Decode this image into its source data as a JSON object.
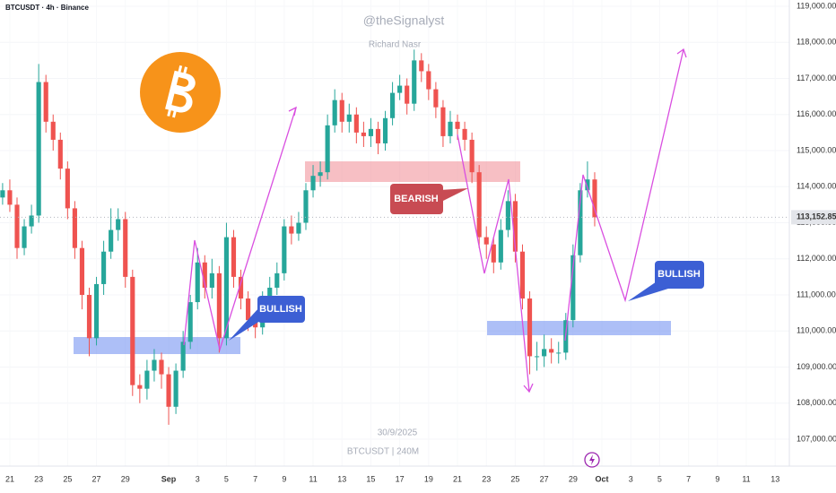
{
  "chart_data": {
    "type": "candlestick",
    "title": "BTCUSDT · 4h · Binance",
    "watermark": {
      "handle": "@theSignalyst",
      "author": "Richard Nasr",
      "date": "30/9/2025",
      "symbol": "BTCUSDT | 240M"
    },
    "annotations": [
      "BULLISH",
      "BEARISH",
      "BULLISH"
    ],
    "up_color": "#26a69a",
    "down_color": "#ef5350",
    "x": [
      -0.5,
      0,
      0.5,
      1,
      1.5,
      2,
      2.5,
      3,
      3.5,
      4,
      4.5,
      5,
      5.5,
      6,
      6.5,
      7,
      7.5,
      8,
      8.5,
      9,
      9.5,
      10,
      10.5,
      11,
      11.5,
      12,
      12.5,
      13,
      13.5,
      14,
      14.5,
      15,
      15.5,
      16,
      16.5,
      17,
      17.5,
      18,
      18.5,
      19,
      19.5,
      20,
      20.5,
      21,
      21.5,
      22,
      22.5,
      23,
      23.5,
      24,
      24.5,
      25,
      25.5,
      26,
      26.5,
      27,
      27.5,
      28,
      28.5,
      29,
      29.5,
      30,
      30.5,
      31,
      31.5,
      32,
      32.5,
      33,
      33.5,
      34,
      34.5,
      35,
      35.5,
      36,
      36.5,
      37,
      37.5,
      38,
      38.5,
      39,
      39.5,
      40,
      40.5
    ],
    "open": [
      113700,
      113900,
      113500,
      112300,
      112900,
      113200,
      116900,
      115800,
      115300,
      114500,
      113400,
      112300,
      111000,
      109800,
      111300,
      112200,
      112800,
      113100,
      111500,
      108500,
      108400,
      108900,
      109200,
      108800,
      107900,
      108900,
      109700,
      110800,
      111900,
      111200,
      111600,
      109800,
      112600,
      111500,
      110900,
      110300,
      110100,
      110900,
      111200,
      111600,
      112900,
      112700,
      113000,
      113900,
      114300,
      114400,
      115700,
      116400,
      115800,
      116000,
      115500,
      115400,
      115600,
      115200,
      115900,
      116600,
      116800,
      116300,
      117500,
      117200,
      116700,
      116200,
      115400,
      115800,
      115600,
      115300,
      114400,
      112600,
      112400,
      111900,
      112800,
      113600,
      112200,
      110900,
      109300,
      109300,
      109500,
      109400,
      109400,
      110300,
      112100,
      113900,
      114200
    ],
    "high": [
      114100,
      114200,
      113700,
      113100,
      113500,
      117400,
      117100,
      116000,
      115500,
      114700,
      113600,
      112500,
      111200,
      111500,
      112500,
      113400,
      113400,
      113300,
      111700,
      108800,
      109200,
      109500,
      109400,
      109000,
      109100,
      110000,
      111000,
      112300,
      112100,
      112000,
      111800,
      113000,
      112800,
      111700,
      111100,
      110500,
      111100,
      111500,
      111900,
      113100,
      113200,
      113300,
      114100,
      114600,
      114700,
      116000,
      116700,
      116600,
      116300,
      116200,
      115800,
      115900,
      115800,
      116100,
      116900,
      117100,
      117000,
      117800,
      117700,
      117400,
      116900,
      116400,
      116100,
      116000,
      115800,
      115500,
      114600,
      112900,
      112600,
      113100,
      113900,
      113800,
      112400,
      111100,
      109700,
      109900,
      109800,
      109700,
      110500,
      112400,
      114100,
      114700,
      114400
    ],
    "low": [
      113500,
      113300,
      112000,
      112100,
      112700,
      113000,
      115500,
      115000,
      114200,
      113100,
      112000,
      110600,
      109300,
      109600,
      111000,
      112000,
      112500,
      111200,
      108200,
      108000,
      108100,
      108600,
      108400,
      107400,
      107700,
      108700,
      109500,
      110600,
      110900,
      110900,
      109400,
      109600,
      111200,
      110600,
      110000,
      109800,
      109900,
      110700,
      111000,
      111400,
      112400,
      112500,
      112800,
      113700,
      114000,
      114200,
      115500,
      115500,
      115500,
      115200,
      115100,
      115100,
      114900,
      115000,
      115700,
      116400,
      116000,
      116100,
      116900,
      116400,
      115900,
      115100,
      115200,
      115300,
      115000,
      114100,
      112300,
      112000,
      111600,
      111700,
      112600,
      111900,
      110600,
      108800,
      108900,
      109000,
      109100,
      109100,
      109200,
      110100,
      111900,
      113700,
      112900
    ],
    "close": [
      113900,
      113500,
      112300,
      112900,
      113200,
      116900,
      115800,
      115300,
      114500,
      113400,
      112300,
      111000,
      109800,
      111300,
      112200,
      112800,
      113100,
      111500,
      108500,
      108400,
      108900,
      109200,
      108800,
      107900,
      108900,
      109700,
      110800,
      111900,
      111200,
      111600,
      109800,
      112600,
      111500,
      110900,
      110300,
      110100,
      110900,
      111200,
      111600,
      112900,
      112700,
      113000,
      113900,
      114300,
      114400,
      115700,
      116400,
      115800,
      116000,
      115500,
      115400,
      115600,
      115200,
      115900,
      116600,
      116800,
      116300,
      117500,
      117200,
      116700,
      116200,
      115400,
      115800,
      115600,
      115300,
      114400,
      112600,
      112400,
      111900,
      112800,
      113600,
      112200,
      110900,
      109300,
      109300,
      109500,
      109400,
      109400,
      110300,
      112100,
      113900,
      114200,
      113152.85
    ],
    "last_price": {
      "value": 113152.85,
      "label": "113,152.85"
    },
    "xlim": [
      -0.68,
      53.98
    ],
    "xticks": [
      {
        "value": 0,
        "label": "21"
      },
      {
        "value": 2,
        "label": "23"
      },
      {
        "value": 4,
        "label": "25"
      },
      {
        "value": 6,
        "label": "27"
      },
      {
        "value": 8,
        "label": "29"
      },
      {
        "value": 11,
        "label": "Sep"
      },
      {
        "value": 13,
        "label": "3"
      },
      {
        "value": 15,
        "label": "5"
      },
      {
        "value": 17,
        "label": "7"
      },
      {
        "value": 19,
        "label": "9"
      },
      {
        "value": 21,
        "label": "11"
      },
      {
        "value": 23,
        "label": "13"
      },
      {
        "value": 25,
        "label": "15"
      },
      {
        "value": 27,
        "label": "17"
      },
      {
        "value": 29,
        "label": "19"
      },
      {
        "value": 31,
        "label": "21"
      },
      {
        "value": 33,
        "label": "23"
      },
      {
        "value": 35,
        "label": "25"
      },
      {
        "value": 37,
        "label": "27"
      },
      {
        "value": 39,
        "label": "29"
      },
      {
        "value": 41,
        "label": "Oct"
      },
      {
        "value": 43,
        "label": "3"
      },
      {
        "value": 45,
        "label": "5"
      },
      {
        "value": 47,
        "label": "7"
      },
      {
        "value": 49,
        "label": "9"
      },
      {
        "value": 51,
        "label": "11"
      },
      {
        "value": 53,
        "label": "13"
      }
    ],
    "ylim": [
      106255,
      119174
    ],
    "yticks": [
      {
        "value": 107000,
        "label": "107,000.00"
      },
      {
        "value": 108000,
        "label": "108,000.00"
      },
      {
        "value": 109000,
        "label": "109,000.00"
      },
      {
        "value": 110000,
        "label": "110,000.00"
      },
      {
        "value": 111000,
        "label": "111,000.00"
      },
      {
        "value": 112000,
        "label": "112,000.00"
      },
      {
        "value": 113000,
        "label": "113,000.00"
      },
      {
        "value": 114000,
        "label": "114,000.00"
      },
      {
        "value": 115000,
        "label": "115,000.00"
      },
      {
        "value": 116000,
        "label": "116,000.00"
      },
      {
        "value": 117000,
        "label": "117,000.00"
      },
      {
        "value": 118000,
        "label": "118,000.00"
      },
      {
        "value": 119000,
        "label": "119,000.00"
      }
    ]
  }
}
